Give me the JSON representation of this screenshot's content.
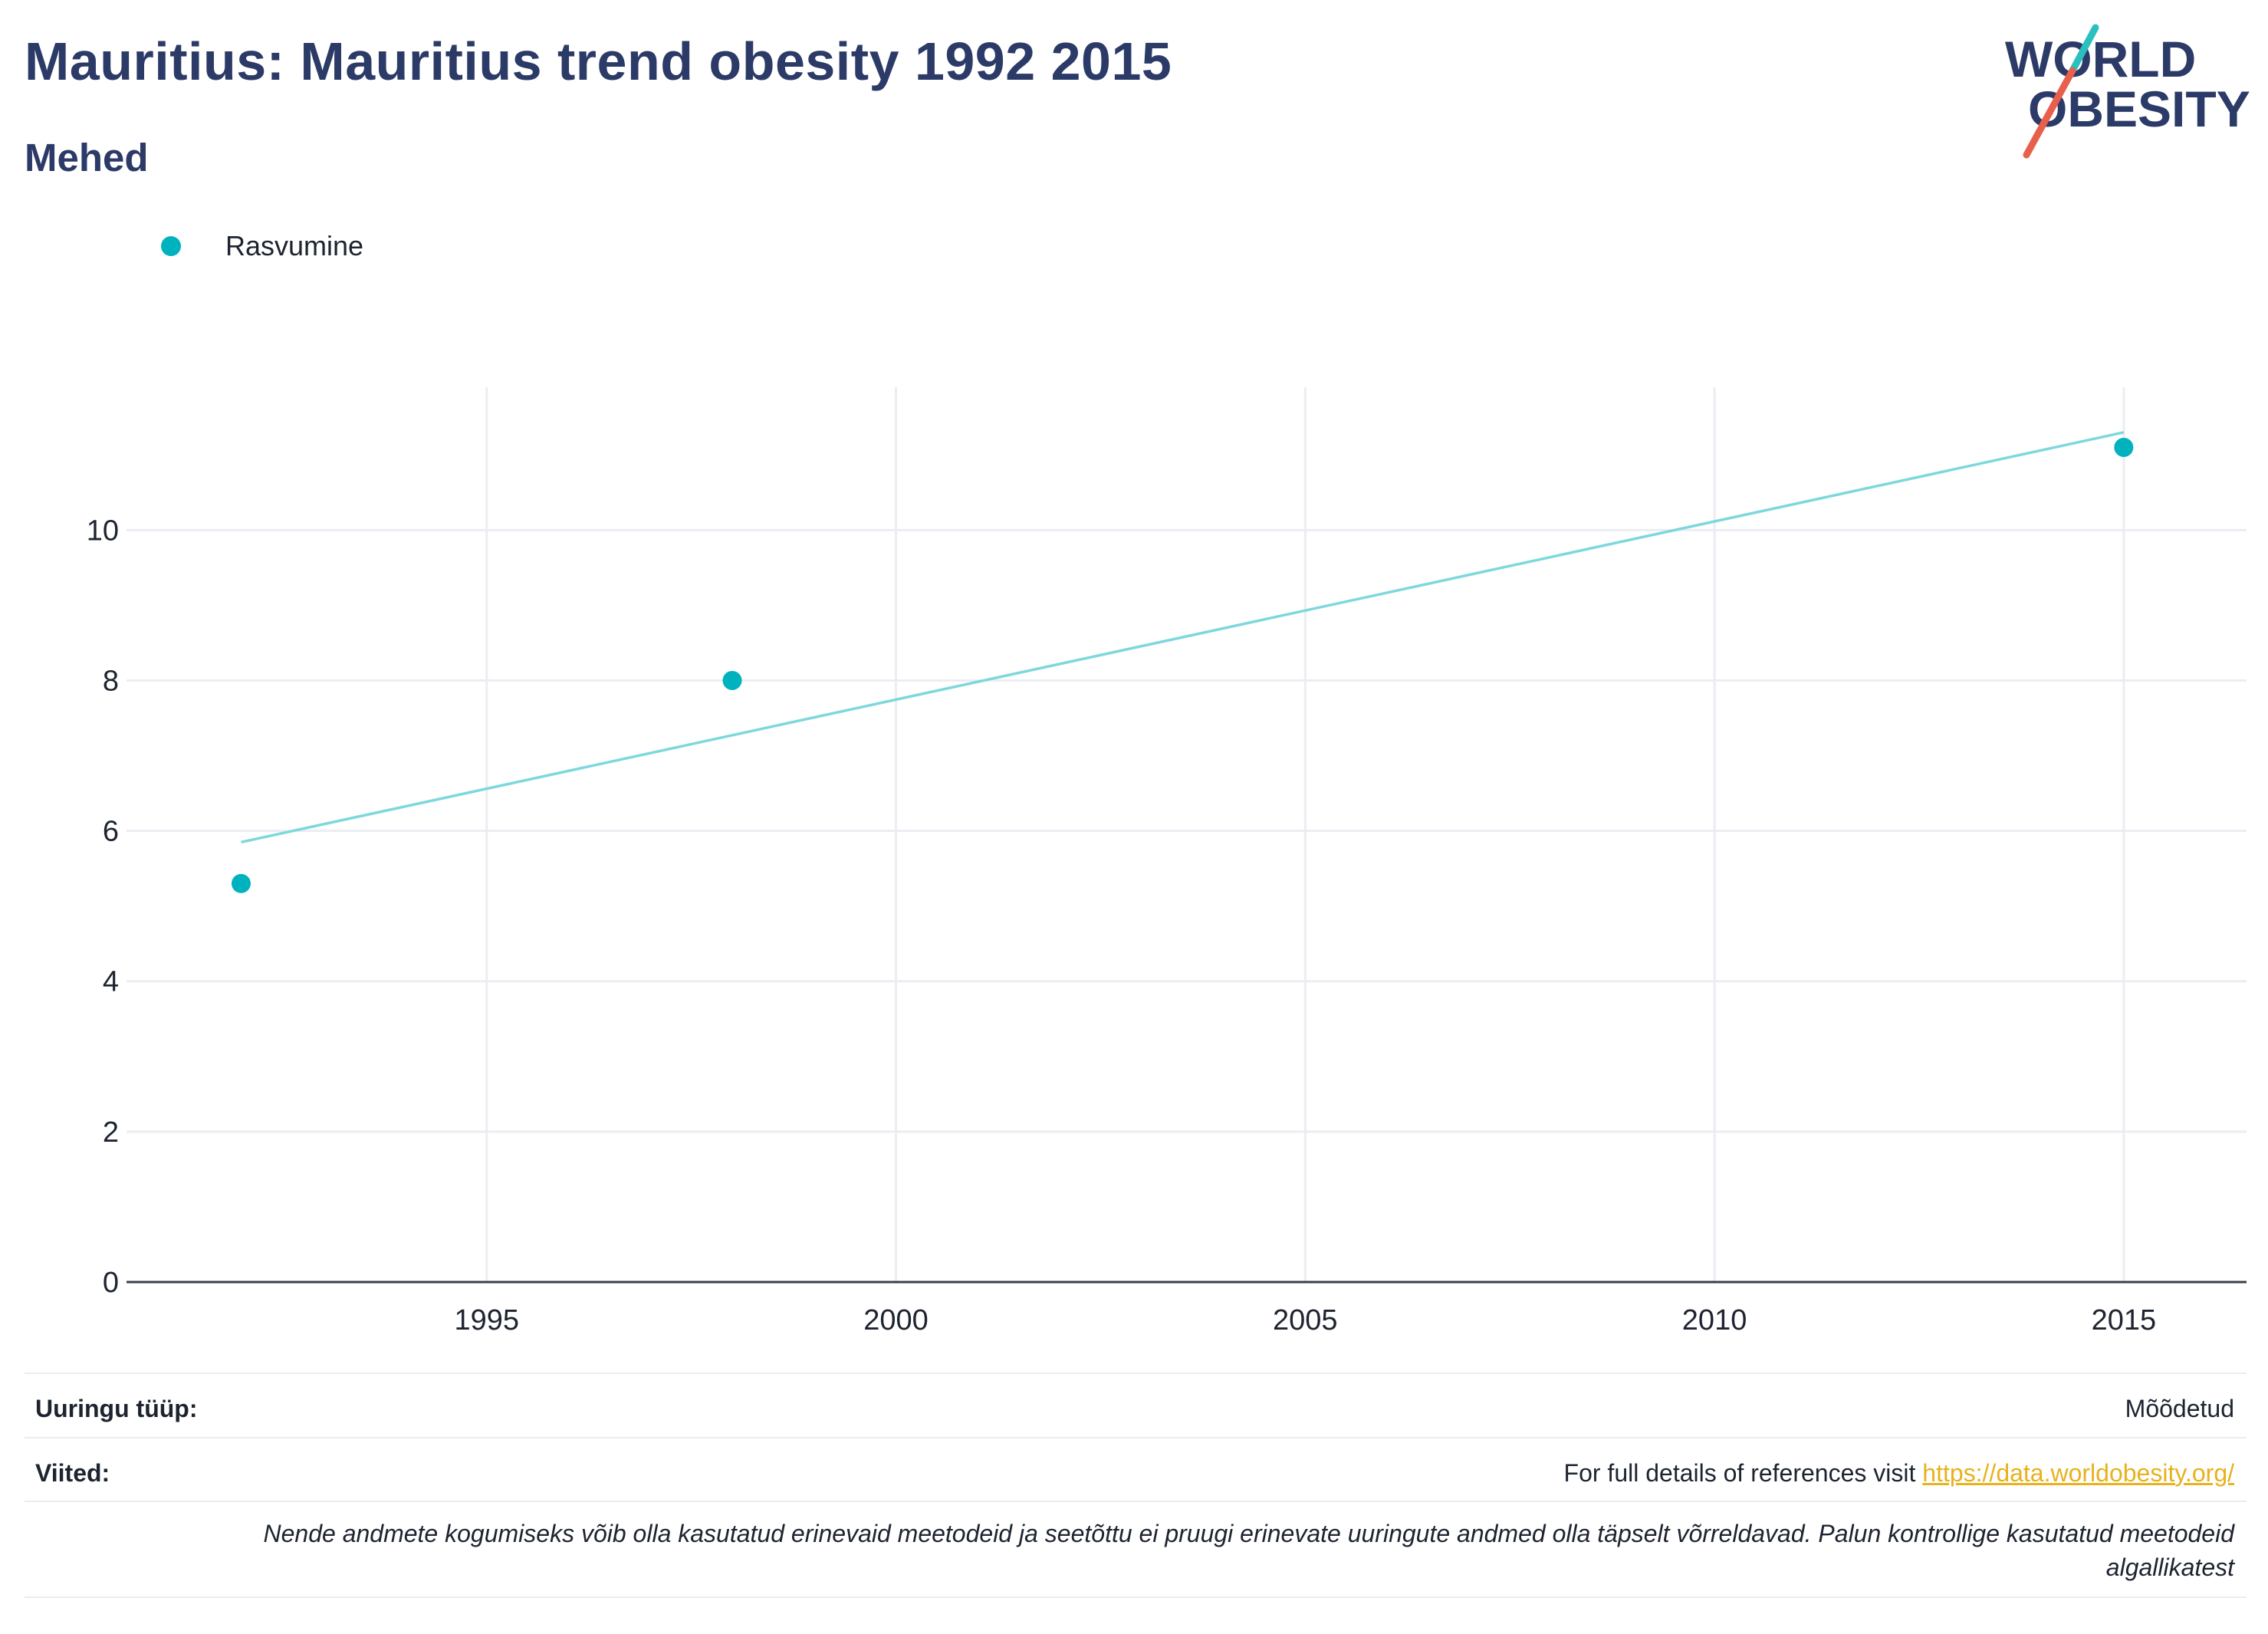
{
  "header": {
    "title": "Mauritius: Mauritius trend obesity 1992 2015",
    "subtitle": "Mehed"
  },
  "logo": {
    "line1": "WORLD",
    "line2": "OBESITY",
    "accent_teal": "#2bbfbf",
    "accent_red": "#e8604c",
    "text_color": "#2b3a67"
  },
  "legend": {
    "series_label": "Rasvumine"
  },
  "chart_data": {
    "type": "scatter",
    "series": [
      {
        "name": "Rasvumine",
        "color": "#00b2bd",
        "x": [
          1992,
          1998,
          2015
        ],
        "y": [
          5.3,
          8.0,
          11.1
        ]
      }
    ],
    "trendline": {
      "color": "#7dd8dc",
      "x": [
        1992,
        2015
      ],
      "y": [
        5.85,
        11.3
      ]
    },
    "x_ticks": [
      "1995",
      "2000",
      "2005",
      "2010",
      "2015"
    ],
    "y_ticks": [
      "0",
      "2",
      "4",
      "6",
      "8",
      "10"
    ],
    "xlim": [
      1990.6,
      2016.5
    ],
    "ylim": [
      0,
      11.9
    ],
    "grid": true
  },
  "footer": {
    "survey_label": "Uuringu tüüp:",
    "survey_value": "Mõõdetud",
    "refs_label": "Viited:",
    "refs_text": "For full details of references visit ",
    "refs_link": "https://data.worldobesity.org/",
    "note_line1": "Nende andmete kogumiseks võib olla kasutatud erinevaid meetodeid ja seetõttu ei pruugi erinevate uuringute andmed olla täpselt võrreldavad. Palun kontrollige kasutatud meetodeid",
    "note_line2": "algallikatest"
  }
}
